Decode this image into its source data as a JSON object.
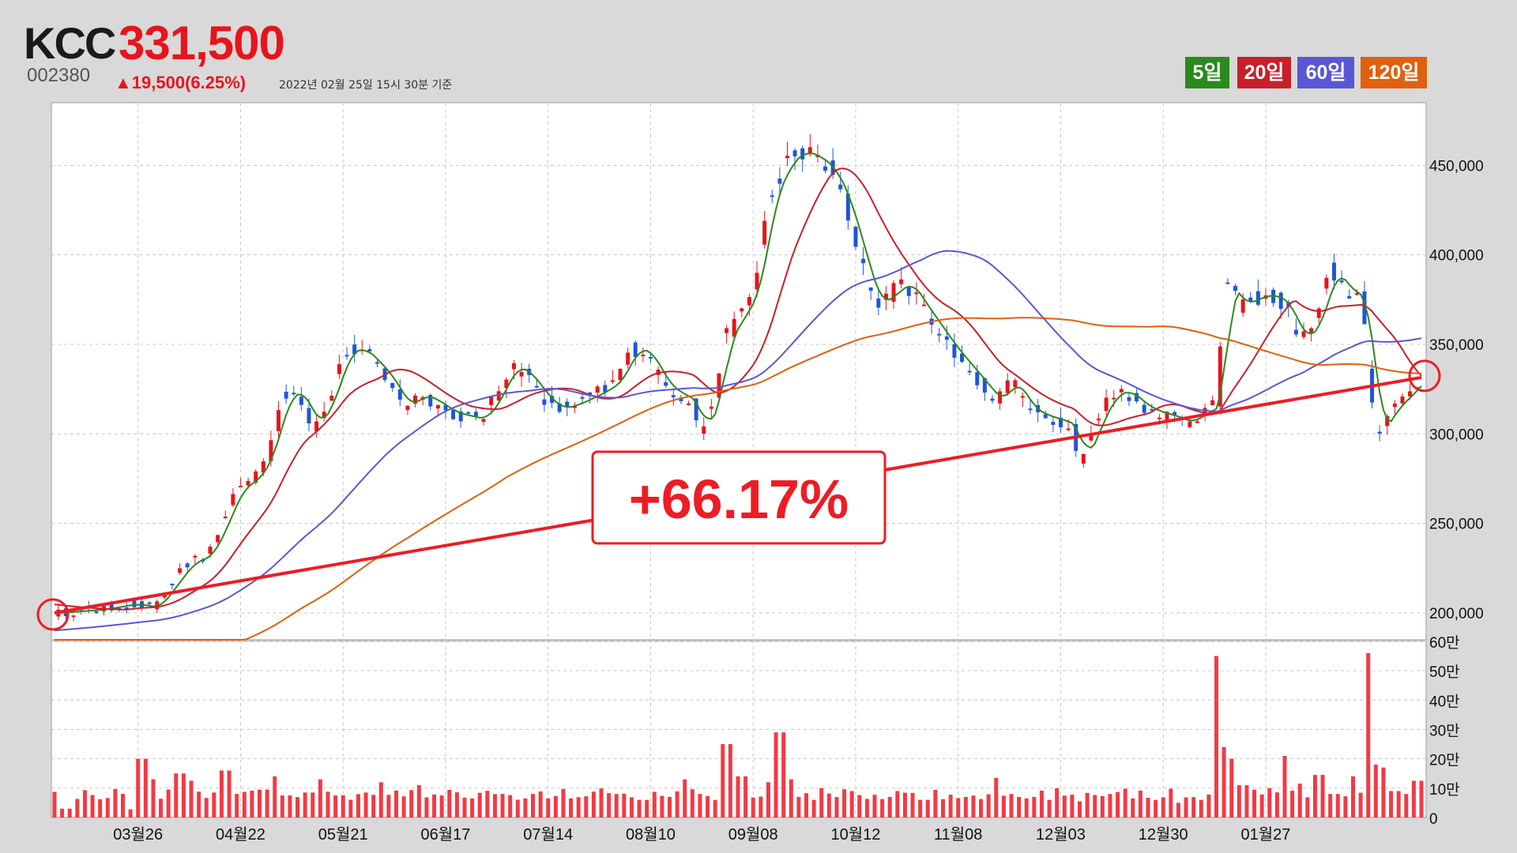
{
  "header": {
    "ticker": "KCC",
    "price": "331,500",
    "code": "002380",
    "change": "▲19,500(6.25%)",
    "basis": "2022년 02월 25일 15시 30분 기준"
  },
  "legend": [
    {
      "label": "5일",
      "color": "#2a8a1c"
    },
    {
      "label": "20일",
      "color": "#c8202a"
    },
    {
      "label": "60일",
      "color": "#5a57d6"
    },
    {
      "label": "120일",
      "color": "#e0600e"
    }
  ],
  "annotation": {
    "label": "+66.17%"
  },
  "chart_data": {
    "type": "candlestick",
    "x_tick_labels": [
      "03월26",
      "04월22",
      "05월21",
      "06월17",
      "07월14",
      "08월10",
      "09월08",
      "10월12",
      "11월08",
      "12월03",
      "12월30",
      "01월27"
    ],
    "price_axis": {
      "ylim": [
        185000,
        485000
      ],
      "ticks": [
        200000,
        250000,
        300000,
        350000,
        400000,
        450000
      ],
      "tick_labels": [
        "200,000",
        "250,000",
        "300,000",
        "350,000",
        "400,000",
        "450,000"
      ]
    },
    "volume_axis": {
      "ylim": [
        0,
        600000
      ],
      "ticks": [
        0,
        100000,
        200000,
        300000,
        400000,
        500000,
        600000
      ],
      "tick_labels": [
        "0",
        "10만",
        "20만",
        "30만",
        "40만",
        "50만",
        "60만"
      ]
    },
    "grid": true,
    "up_color": "#e8141c",
    "down_color": "#1e56d8",
    "close_path": [
      [
        0,
        200000
      ],
      [
        12,
        202000
      ],
      [
        20,
        205000
      ],
      [
        26,
        203000
      ],
      [
        35,
        228000
      ],
      [
        40,
        232000
      ],
      [
        44,
        250000
      ],
      [
        48,
        270000
      ],
      [
        52,
        274000
      ],
      [
        56,
        288000
      ],
      [
        60,
        320000
      ],
      [
        64,
        324000
      ],
      [
        68,
        304000
      ],
      [
        72,
        318000
      ],
      [
        76,
        345000
      ],
      [
        80,
        348000
      ],
      [
        84,
        340000
      ],
      [
        88,
        330000
      ],
      [
        92,
        315000
      ],
      [
        96,
        322000
      ],
      [
        100,
        318000
      ],
      [
        104,
        312000
      ],
      [
        108,
        310000
      ],
      [
        112,
        308000
      ],
      [
        116,
        320000
      ],
      [
        120,
        338000
      ],
      [
        124,
        334000
      ],
      [
        128,
        322000
      ],
      [
        132,
        314000
      ],
      [
        136,
        316000
      ],
      [
        140,
        320000
      ],
      [
        144,
        324000
      ],
      [
        148,
        330000
      ],
      [
        152,
        348000
      ],
      [
        156,
        345000
      ],
      [
        160,
        328000
      ],
      [
        164,
        322000
      ],
      [
        168,
        318000
      ],
      [
        170,
        300000
      ],
      [
        174,
        322000
      ],
      [
        176,
        352000
      ],
      [
        180,
        365000
      ],
      [
        184,
        380000
      ],
      [
        188,
        430000
      ],
      [
        192,
        450000
      ],
      [
        196,
        458000
      ],
      [
        200,
        455000
      ],
      [
        204,
        448000
      ],
      [
        208,
        430000
      ],
      [
        212,
        400000
      ],
      [
        216,
        372000
      ],
      [
        220,
        378000
      ],
      [
        224,
        385000
      ],
      [
        228,
        372000
      ],
      [
        232,
        360000
      ],
      [
        236,
        348000
      ],
      [
        240,
        338000
      ],
      [
        244,
        328000
      ],
      [
        248,
        318000
      ],
      [
        252,
        330000
      ],
      [
        256,
        315000
      ],
      [
        260,
        310000
      ],
      [
        264,
        308000
      ],
      [
        268,
        304000
      ],
      [
        270,
        284000
      ],
      [
        274,
        305000
      ],
      [
        278,
        322000
      ],
      [
        282,
        324000
      ],
      [
        286,
        316000
      ],
      [
        290,
        312000
      ],
      [
        294,
        310000
      ],
      [
        298,
        306000
      ],
      [
        302,
        312000
      ],
      [
        306,
        316000
      ],
      [
        308,
        385000
      ],
      [
        312,
        372000
      ],
      [
        316,
        376000
      ],
      [
        320,
        378000
      ],
      [
        324,
        372000
      ],
      [
        328,
        352000
      ],
      [
        332,
        362000
      ],
      [
        336,
        392000
      ],
      [
        340,
        380000
      ],
      [
        344,
        376000
      ],
      [
        348,
        300000
      ],
      [
        352,
        314000
      ],
      [
        356,
        322000
      ],
      [
        360,
        331500
      ]
    ],
    "volume_bars": [
      [
        3,
        30000
      ],
      [
        20,
        28000
      ],
      [
        23,
        200000
      ],
      [
        26,
        130000
      ],
      [
        30,
        95000
      ],
      [
        33,
        150000
      ],
      [
        36,
        125000
      ],
      [
        38,
        88000
      ],
      [
        42,
        85000
      ],
      [
        45,
        160000
      ],
      [
        48,
        80000
      ],
      [
        55,
        95000
      ],
      [
        58,
        140000
      ],
      [
        61,
        75000
      ],
      [
        67,
        85000
      ],
      [
        70,
        130000
      ],
      [
        74,
        75000
      ],
      [
        82,
        85000
      ],
      [
        86,
        120000
      ],
      [
        92,
        72000
      ],
      [
        96,
        110000
      ],
      [
        102,
        75000
      ],
      [
        110,
        65000
      ],
      [
        118,
        80000
      ],
      [
        124,
        65000
      ],
      [
        130,
        65000
      ],
      [
        136,
        65000
      ],
      [
        142,
        88000
      ],
      [
        148,
        80000
      ],
      [
        155,
        60000
      ],
      [
        162,
        70000
      ],
      [
        166,
        130000
      ],
      [
        170,
        80000
      ],
      [
        174,
        60000
      ],
      [
        176,
        250000
      ],
      [
        178,
        250000
      ],
      [
        181,
        140000
      ],
      [
        188,
        120000
      ],
      [
        191,
        290000
      ],
      [
        194,
        130000
      ],
      [
        200,
        60000
      ],
      [
        210,
        90000
      ],
      [
        220,
        70000
      ],
      [
        230,
        60000
      ],
      [
        240,
        70000
      ],
      [
        248,
        135000
      ],
      [
        252,
        80000
      ],
      [
        258,
        70000
      ],
      [
        262,
        60000
      ],
      [
        270,
        55000
      ],
      [
        278,
        80000
      ],
      [
        284,
        65000
      ],
      [
        290,
        60000
      ],
      [
        296,
        50000
      ],
      [
        302,
        60000
      ],
      [
        306,
        550000
      ],
      [
        308,
        240000
      ],
      [
        310,
        200000
      ],
      [
        313,
        110000
      ],
      [
        320,
        100000
      ],
      [
        324,
        210000
      ],
      [
        328,
        115000
      ],
      [
        333,
        145000
      ],
      [
        337,
        80000
      ],
      [
        342,
        140000
      ],
      [
        346,
        560000
      ],
      [
        348,
        180000
      ],
      [
        350,
        170000
      ],
      [
        353,
        90000
      ],
      [
        356,
        80000
      ],
      [
        359,
        125000
      ]
    ],
    "trendline": {
      "start": [
        0,
        200000
      ],
      "end": [
        360,
        331500
      ],
      "change_pct": "+66.17%"
    }
  }
}
